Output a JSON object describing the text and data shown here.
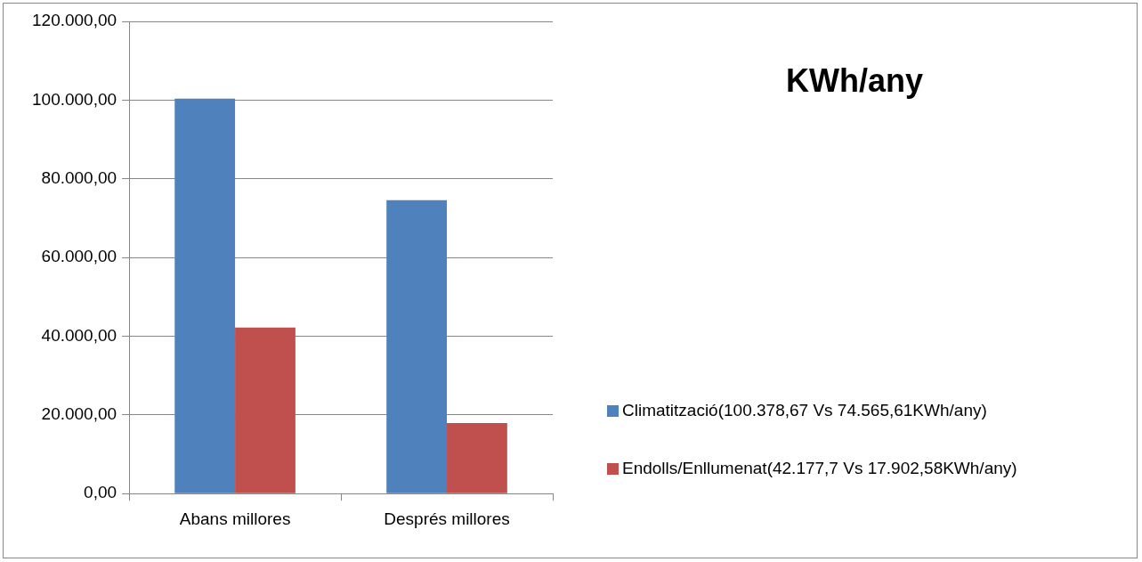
{
  "chart_data": {
    "type": "bar",
    "title": "KWh/any",
    "categories": [
      "Abans millores",
      "Després millores"
    ],
    "series": [
      {
        "name": "Climatització(100.378,67 Vs 74.565,61KWh/any)",
        "color": "#4f81bd",
        "values": [
          100378.67,
          74565.61
        ]
      },
      {
        "name": "Endolls/Enllumenat(42.177,7 Vs 17.902,58KWh/any)",
        "color": "#c0504d",
        "values": [
          42177.7,
          17902.58
        ]
      }
    ],
    "ylim": [
      0,
      120000
    ],
    "yticks": [
      {
        "value": 0,
        "label": "0,00"
      },
      {
        "value": 20000,
        "label": "20.000,00"
      },
      {
        "value": 40000,
        "label": "40.000,00"
      },
      {
        "value": 60000,
        "label": "60.000,00"
      },
      {
        "value": 80000,
        "label": "80.000,00"
      },
      {
        "value": 100000,
        "label": "100.000,00"
      },
      {
        "value": 120000,
        "label": "120.000,00"
      }
    ],
    "grid": "y",
    "legend": "right"
  }
}
